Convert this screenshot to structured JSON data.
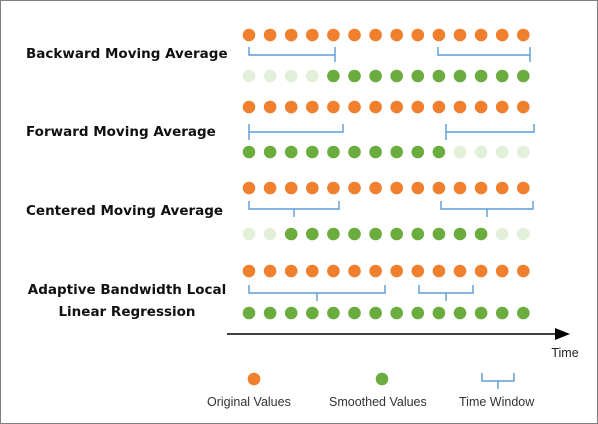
{
  "rows": [
    {
      "label": "Backward Moving Average",
      "original": [
        1,
        1,
        1,
        1,
        1,
        1,
        1,
        1,
        1,
        1,
        1,
        1,
        1,
        1
      ],
      "smoothed": [
        0,
        0,
        0,
        0,
        1,
        1,
        1,
        1,
        1,
        1,
        1,
        1,
        1,
        1
      ]
    },
    {
      "label": "Forward Moving Average",
      "original": [
        1,
        1,
        1,
        1,
        1,
        1,
        1,
        1,
        1,
        1,
        1,
        1,
        1,
        1
      ],
      "smoothed": [
        1,
        1,
        1,
        1,
        1,
        1,
        1,
        1,
        1,
        1,
        0,
        0,
        0,
        0
      ]
    },
    {
      "label": "Centered Moving Average",
      "original": [
        1,
        1,
        1,
        1,
        1,
        1,
        1,
        1,
        1,
        1,
        1,
        1,
        1,
        1
      ],
      "smoothed": [
        0,
        0,
        1,
        1,
        1,
        1,
        1,
        1,
        1,
        1,
        1,
        1,
        0,
        0
      ]
    },
    {
      "label_lines": [
        "Adaptive Bandwidth Local",
        "Linear Regression"
      ],
      "original": [
        1,
        1,
        1,
        1,
        1,
        1,
        1,
        1,
        1,
        1,
        1,
        1,
        1,
        1
      ],
      "smoothed": [
        1,
        1,
        1,
        1,
        1,
        1,
        1,
        1,
        1,
        1,
        1,
        1,
        1,
        1
      ]
    }
  ],
  "axis": {
    "label": "Time"
  },
  "legend": {
    "original": "Original Values",
    "smoothed": "Smoothed Values",
    "window": "Time Window"
  },
  "colors": {
    "original": "#f07f2e",
    "smoothed": "#6aac3e",
    "faded": "#e2efd9",
    "bracket": "#5b9bd5",
    "axis": "#000000"
  }
}
